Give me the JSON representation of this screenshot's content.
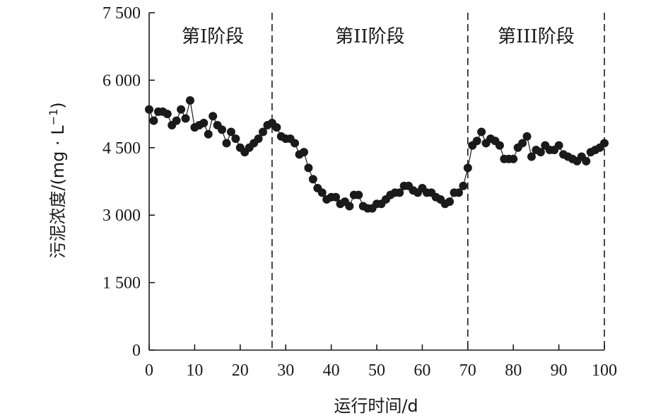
{
  "chart_data": {
    "type": "scatter",
    "xlabel": "运行时间/d",
    "ylabel": "污泥浓度/(mg · L",
    "ylabel_exp": "−1",
    "ylabel_close": ")",
    "xlim": [
      0,
      100
    ],
    "ylim": [
      0,
      7500
    ],
    "xticks": [
      0,
      10,
      20,
      30,
      40,
      50,
      60,
      70,
      80,
      90,
      100
    ],
    "xtick_labels": [
      "0",
      "10",
      "20",
      "30",
      "40",
      "50",
      "60",
      "70",
      "80",
      "90",
      "100"
    ],
    "yticks": [
      0,
      1500,
      3000,
      4500,
      6000,
      7500
    ],
    "ytick_labels": [
      "0",
      "1 500",
      "3 000",
      "4 500",
      "6 000",
      "7 500"
    ],
    "stage_dividers": [
      27,
      70,
      100
    ],
    "stages": [
      {
        "label": "第I阶段",
        "x": 14
      },
      {
        "label": "第II阶段",
        "x": 48.5
      },
      {
        "label": "第III阶段",
        "x": 85
      }
    ],
    "series": [
      {
        "x": [
          0,
          1,
          2,
          3,
          4,
          5,
          6,
          7,
          8,
          9,
          10,
          11,
          12,
          13,
          14,
          15,
          16,
          17,
          18,
          19,
          20,
          21,
          22,
          23,
          24,
          25,
          26,
          27,
          28,
          29,
          30,
          31,
          32,
          33,
          34,
          35,
          36,
          37,
          38,
          39,
          40,
          41,
          42,
          43,
          44,
          45,
          46,
          47,
          48,
          49,
          50,
          51,
          52,
          53,
          54,
          55,
          56,
          57,
          58,
          59,
          60,
          61,
          62,
          63,
          64,
          65,
          66,
          67,
          68,
          69,
          70,
          71,
          72,
          73,
          74,
          75,
          76,
          77,
          78,
          79,
          80,
          81,
          82,
          83,
          84,
          85,
          86,
          87,
          88,
          89,
          90,
          91,
          92,
          93,
          94,
          95,
          96,
          97,
          98,
          99,
          100
        ],
        "values": [
          5350,
          5100,
          5300,
          5300,
          5250,
          5000,
          5100,
          5350,
          5150,
          5550,
          4950,
          5000,
          5050,
          4800,
          5200,
          5000,
          4900,
          4600,
          4850,
          4700,
          4500,
          4400,
          4500,
          4600,
          4700,
          4850,
          5000,
          5050,
          4950,
          4750,
          4700,
          4700,
          4600,
          4350,
          4400,
          4050,
          3800,
          3600,
          3500,
          3350,
          3400,
          3400,
          3250,
          3300,
          3200,
          3450,
          3450,
          3200,
          3150,
          3150,
          3250,
          3250,
          3350,
          3450,
          3500,
          3500,
          3650,
          3650,
          3550,
          3500,
          3600,
          3500,
          3500,
          3400,
          3350,
          3250,
          3300,
          3500,
          3500,
          3650,
          4050,
          4550,
          4650,
          4850,
          4600,
          4700,
          4650,
          4550,
          4250,
          4250,
          4250,
          4500,
          4600,
          4750,
          4300,
          4450,
          4400,
          4550,
          4450,
          4450,
          4550,
          4350,
          4300,
          4250,
          4200,
          4300,
          4200,
          4400,
          4450,
          4500,
          4600
        ]
      }
    ]
  }
}
